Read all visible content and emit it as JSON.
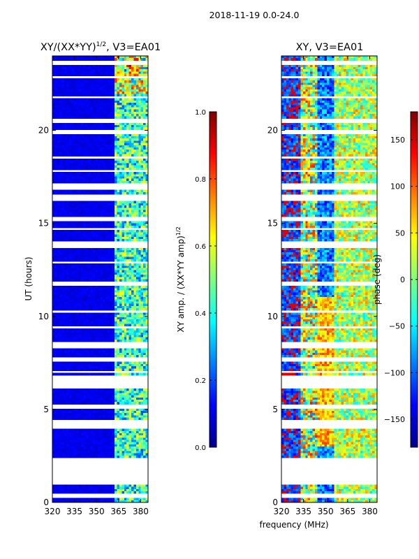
{
  "suptitle": "2018-11-19 0.0-24.0",
  "colors": {
    "background": "#ffffff",
    "axes": "#000000",
    "masked": "#ffffff"
  },
  "chart_data": [
    {
      "type": "heatmap",
      "id": "amp",
      "title": "XY/(XX*YY)",
      "title_exp": "1/2",
      "title_suffix": ", V3=EA01",
      "xlabel": "",
      "ylabel": "UT (hours)",
      "xlim": [
        320,
        385
      ],
      "ylim": [
        0,
        24
      ],
      "xticks": [
        320,
        335,
        350,
        365,
        380
      ],
      "yticks": [
        0,
        5,
        10,
        15,
        20
      ],
      "colormap": "jet",
      "colorbar": {
        "label": "XY amp. / (XX*YY amp)",
        "label_exp": "1/2",
        "range": [
          0.0,
          1.0
        ],
        "ticks": [
          0.0,
          0.2,
          0.4,
          0.6,
          0.8,
          1.0
        ],
        "tick_labels": [
          "0.0",
          "0.2",
          "0.4",
          "0.6",
          "0.8",
          "1.0"
        ]
      }
    },
    {
      "type": "heatmap",
      "id": "phase",
      "title": "XY, V3=EA01",
      "xlabel": "frequency (MHz)",
      "ylabel": "",
      "xlim": [
        320,
        385
      ],
      "ylim": [
        0,
        24
      ],
      "xticks": [
        320,
        335,
        350,
        365,
        380
      ],
      "yticks": [
        0,
        5,
        10,
        15,
        20
      ],
      "colormap": "jet",
      "colorbar": {
        "label": "phase (deg)",
        "range": [
          -180,
          180
        ],
        "ticks": [
          150,
          100,
          50,
          0,
          -50,
          -100,
          -150
        ],
        "tick_labels": [
          "150",
          "100",
          "50",
          "0",
          "−50",
          "−100",
          "−150"
        ]
      }
    }
  ],
  "flagged_hours": [
    [
      21.6,
      23.0
    ],
    [
      23.5,
      23.8
    ],
    [
      19.6,
      20.0
    ],
    [
      18.7,
      19.0
    ],
    [
      17.2,
      17.9
    ],
    [
      16.2,
      16.5
    ],
    [
      15.3,
      15.7
    ],
    [
      12.1,
      12.3
    ],
    [
      9.9,
      10.3
    ],
    [
      8.6,
      8.9
    ],
    [
      7.4,
      7.8
    ],
    [
      6.8,
      7.2
    ],
    [
      6.1,
      6.3
    ],
    [
      4.0,
      4.2
    ],
    [
      3.4,
      3.6
    ],
    [
      2.1,
      2.25
    ],
    [
      1.1,
      1.25
    ],
    [
      14.55,
      14.7
    ],
    [
      13.7,
      13.85
    ],
    [
      11.0,
      11.15
    ],
    [
      5.4,
      5.5
    ],
    [
      0.3,
      0.45
    ],
    [
      18.3,
      18.4
    ],
    [
      9.3,
      9.4
    ],
    [
      16.9,
      17.0
    ]
  ]
}
